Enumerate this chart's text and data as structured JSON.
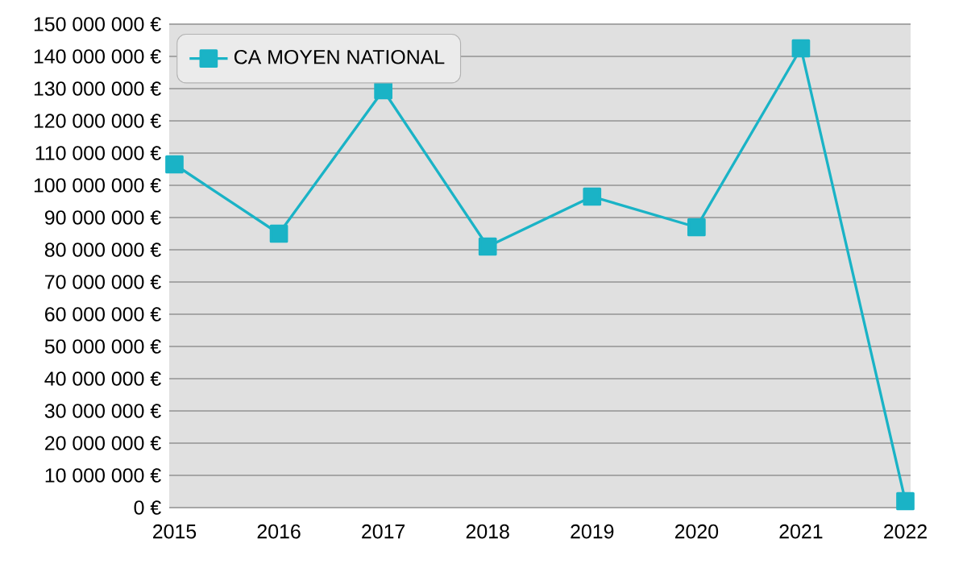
{
  "chart_data": {
    "type": "line",
    "categories": [
      "2015",
      "2016",
      "2017",
      "2018",
      "2019",
      "2020",
      "2021",
      "2022"
    ],
    "series": [
      {
        "name": "CA MOYEN NATIONAL",
        "color": "#1ab3c6",
        "values": [
          106500000,
          85000000,
          129500000,
          81000000,
          96500000,
          87000000,
          142500000,
          2000000
        ]
      }
    ],
    "ylim": [
      0,
      150000000
    ],
    "yticks": [
      {
        "value": 0,
        "label": "0 €"
      },
      {
        "value": 10000000,
        "label": "10 000 000 €"
      },
      {
        "value": 20000000,
        "label": "20 000 000 €"
      },
      {
        "value": 30000000,
        "label": "30 000 000 €"
      },
      {
        "value": 40000000,
        "label": "40 000 000 €"
      },
      {
        "value": 50000000,
        "label": "50 000 000 €"
      },
      {
        "value": 60000000,
        "label": "60 000 000 €"
      },
      {
        "value": 70000000,
        "label": "70 000 000 €"
      },
      {
        "value": 80000000,
        "label": "80 000 000 €"
      },
      {
        "value": 90000000,
        "label": "90 000 000 €"
      },
      {
        "value": 100000000,
        "label": "100 000 000 €"
      },
      {
        "value": 110000000,
        "label": "110 000 000 €"
      },
      {
        "value": 120000000,
        "label": "120 000 000 €"
      },
      {
        "value": 130000000,
        "label": "130 000 000 €"
      },
      {
        "value": 140000000,
        "label": "140 000 000 €"
      },
      {
        "value": 150000000,
        "label": "150 000 000 €"
      }
    ],
    "grid": "y",
    "legend": "top left",
    "marker": "square",
    "line_style": "solid"
  }
}
